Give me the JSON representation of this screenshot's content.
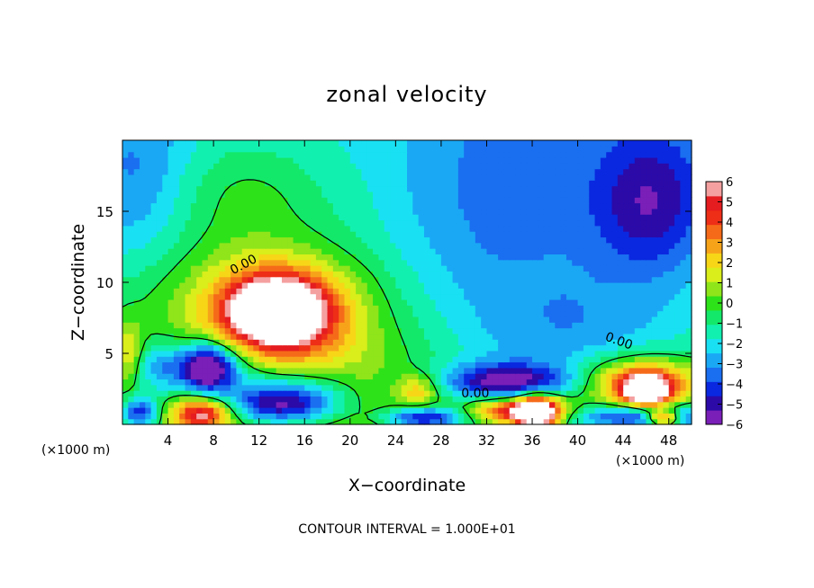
{
  "chart_data": {
    "type": "heatmap",
    "title": "zonal velocity",
    "xlabel": "X−coordinate",
    "ylabel": "Z−coordinate",
    "x_unit_left": "(×1000 m)",
    "x_unit_right": "(×1000 m)",
    "xlim": [
      0,
      50
    ],
    "ylim": [
      0,
      20
    ],
    "x_ticks": [
      4,
      8,
      12,
      16,
      20,
      24,
      28,
      32,
      36,
      40,
      44,
      48
    ],
    "y_ticks": [
      5,
      10,
      15
    ],
    "colorbar": {
      "min": -6,
      "max": 6,
      "tick_labels": [
        "6",
        "5",
        "4",
        "3",
        "2",
        "1",
        "0",
        "−1",
        "−2",
        "−3",
        "−4",
        "−5",
        "−6"
      ],
      "colors": [
        "#7a1fb8",
        "#2b0aa8",
        "#0a28e0",
        "#1a6ef0",
        "#1aa8f5",
        "#19e1f3",
        "#12f0b0",
        "#13e86a",
        "#2ee21a",
        "#8fe51a",
        "#d9ee1a",
        "#f7d617",
        "#f7a31a",
        "#f56a19",
        "#ee2e17",
        "#e51c20",
        "#f5a0a0",
        "#ffffff"
      ]
    },
    "contour_labels": [
      "0.00",
      "0.00",
      "0.00"
    ],
    "footer": "CONTOUR INTERVAL = 1.000E+01",
    "features": [
      {
        "x": 13.5,
        "z": 8.0,
        "value": 7.0,
        "sx": 3.2,
        "sz": 1.8
      },
      {
        "x": 12.5,
        "z": 8.5,
        "value": 3.0,
        "sx": 6.0,
        "sz": 3.2
      },
      {
        "x": 15.5,
        "z": 7.5,
        "value": 2.0,
        "sx": 4.0,
        "sz": 2.5
      },
      {
        "x": 7.5,
        "z": 4.0,
        "value": -5.5,
        "sx": 1.5,
        "sz": 1.2
      },
      {
        "x": 8.5,
        "z": 4.2,
        "value": -2.5,
        "sx": 2.5,
        "sz": 1.2
      },
      {
        "x": 3.5,
        "z": 4.0,
        "value": -3.0,
        "sx": 2.0,
        "sz": 1.3
      },
      {
        "x": 0.6,
        "z": 5.0,
        "value": 2.5,
        "sx": 0.8,
        "sz": 1.5
      },
      {
        "x": 14.0,
        "z": 1.4,
        "value": -5.5,
        "sx": 3.5,
        "sz": 0.9
      },
      {
        "x": 14.5,
        "z": 2.8,
        "value": -2.0,
        "sx": 4.5,
        "sz": 1.0
      },
      {
        "x": 7.0,
        "z": 0.8,
        "value": 6.0,
        "sx": 1.8,
        "sz": 0.8
      },
      {
        "x": 1.5,
        "z": 0.8,
        "value": -4.5,
        "sx": 1.2,
        "sz": 0.8
      },
      {
        "x": 34.0,
        "z": 3.0,
        "value": -5.0,
        "sx": 4.0,
        "sz": 0.9
      },
      {
        "x": 35.0,
        "z": 1.0,
        "value": 7.0,
        "sx": 3.0,
        "sz": 0.7
      },
      {
        "x": 36.5,
        "z": 0.8,
        "value": 6.5,
        "sx": 1.2,
        "sz": 1.0
      },
      {
        "x": 26.0,
        "z": 2.4,
        "value": 3.0,
        "sx": 1.2,
        "sz": 0.8
      },
      {
        "x": 26.5,
        "z": 0.5,
        "value": -5.0,
        "sx": 2.5,
        "sz": 0.5
      },
      {
        "x": 45.5,
        "z": 3.0,
        "value": 5.5,
        "sx": 4.0,
        "sz": 1.3
      },
      {
        "x": 46.0,
        "z": 2.4,
        "value": 7.0,
        "sx": 1.5,
        "sz": 0.8
      },
      {
        "x": 46.0,
        "z": 0.6,
        "value": -4.5,
        "sx": 5.0,
        "sz": 0.6
      },
      {
        "x": 47.5,
        "z": 0.5,
        "value": 7.0,
        "sx": 1.0,
        "sz": 0.4
      },
      {
        "x": 46.5,
        "z": 15.5,
        "value": -3.0,
        "sx": 3.5,
        "sz": 3.5
      },
      {
        "x": 33.0,
        "z": 14.0,
        "value": -1.5,
        "sx": 9.0,
        "sz": 6.0
      },
      {
        "x": 40.0,
        "z": 6.0,
        "value": -1.5,
        "sx": 6.0,
        "sz": 3.0
      },
      {
        "x": 1.0,
        "z": 17.0,
        "value": -2.0,
        "sx": 3.5,
        "sz": 4.5
      },
      {
        "x": 11.0,
        "z": 16.5,
        "value": 1.2,
        "sx": 5.0,
        "sz": 2.5
      },
      {
        "x": 21.0,
        "z": 3.0,
        "value": 0.8,
        "sx": 4.0,
        "sz": 2.5
      }
    ]
  }
}
